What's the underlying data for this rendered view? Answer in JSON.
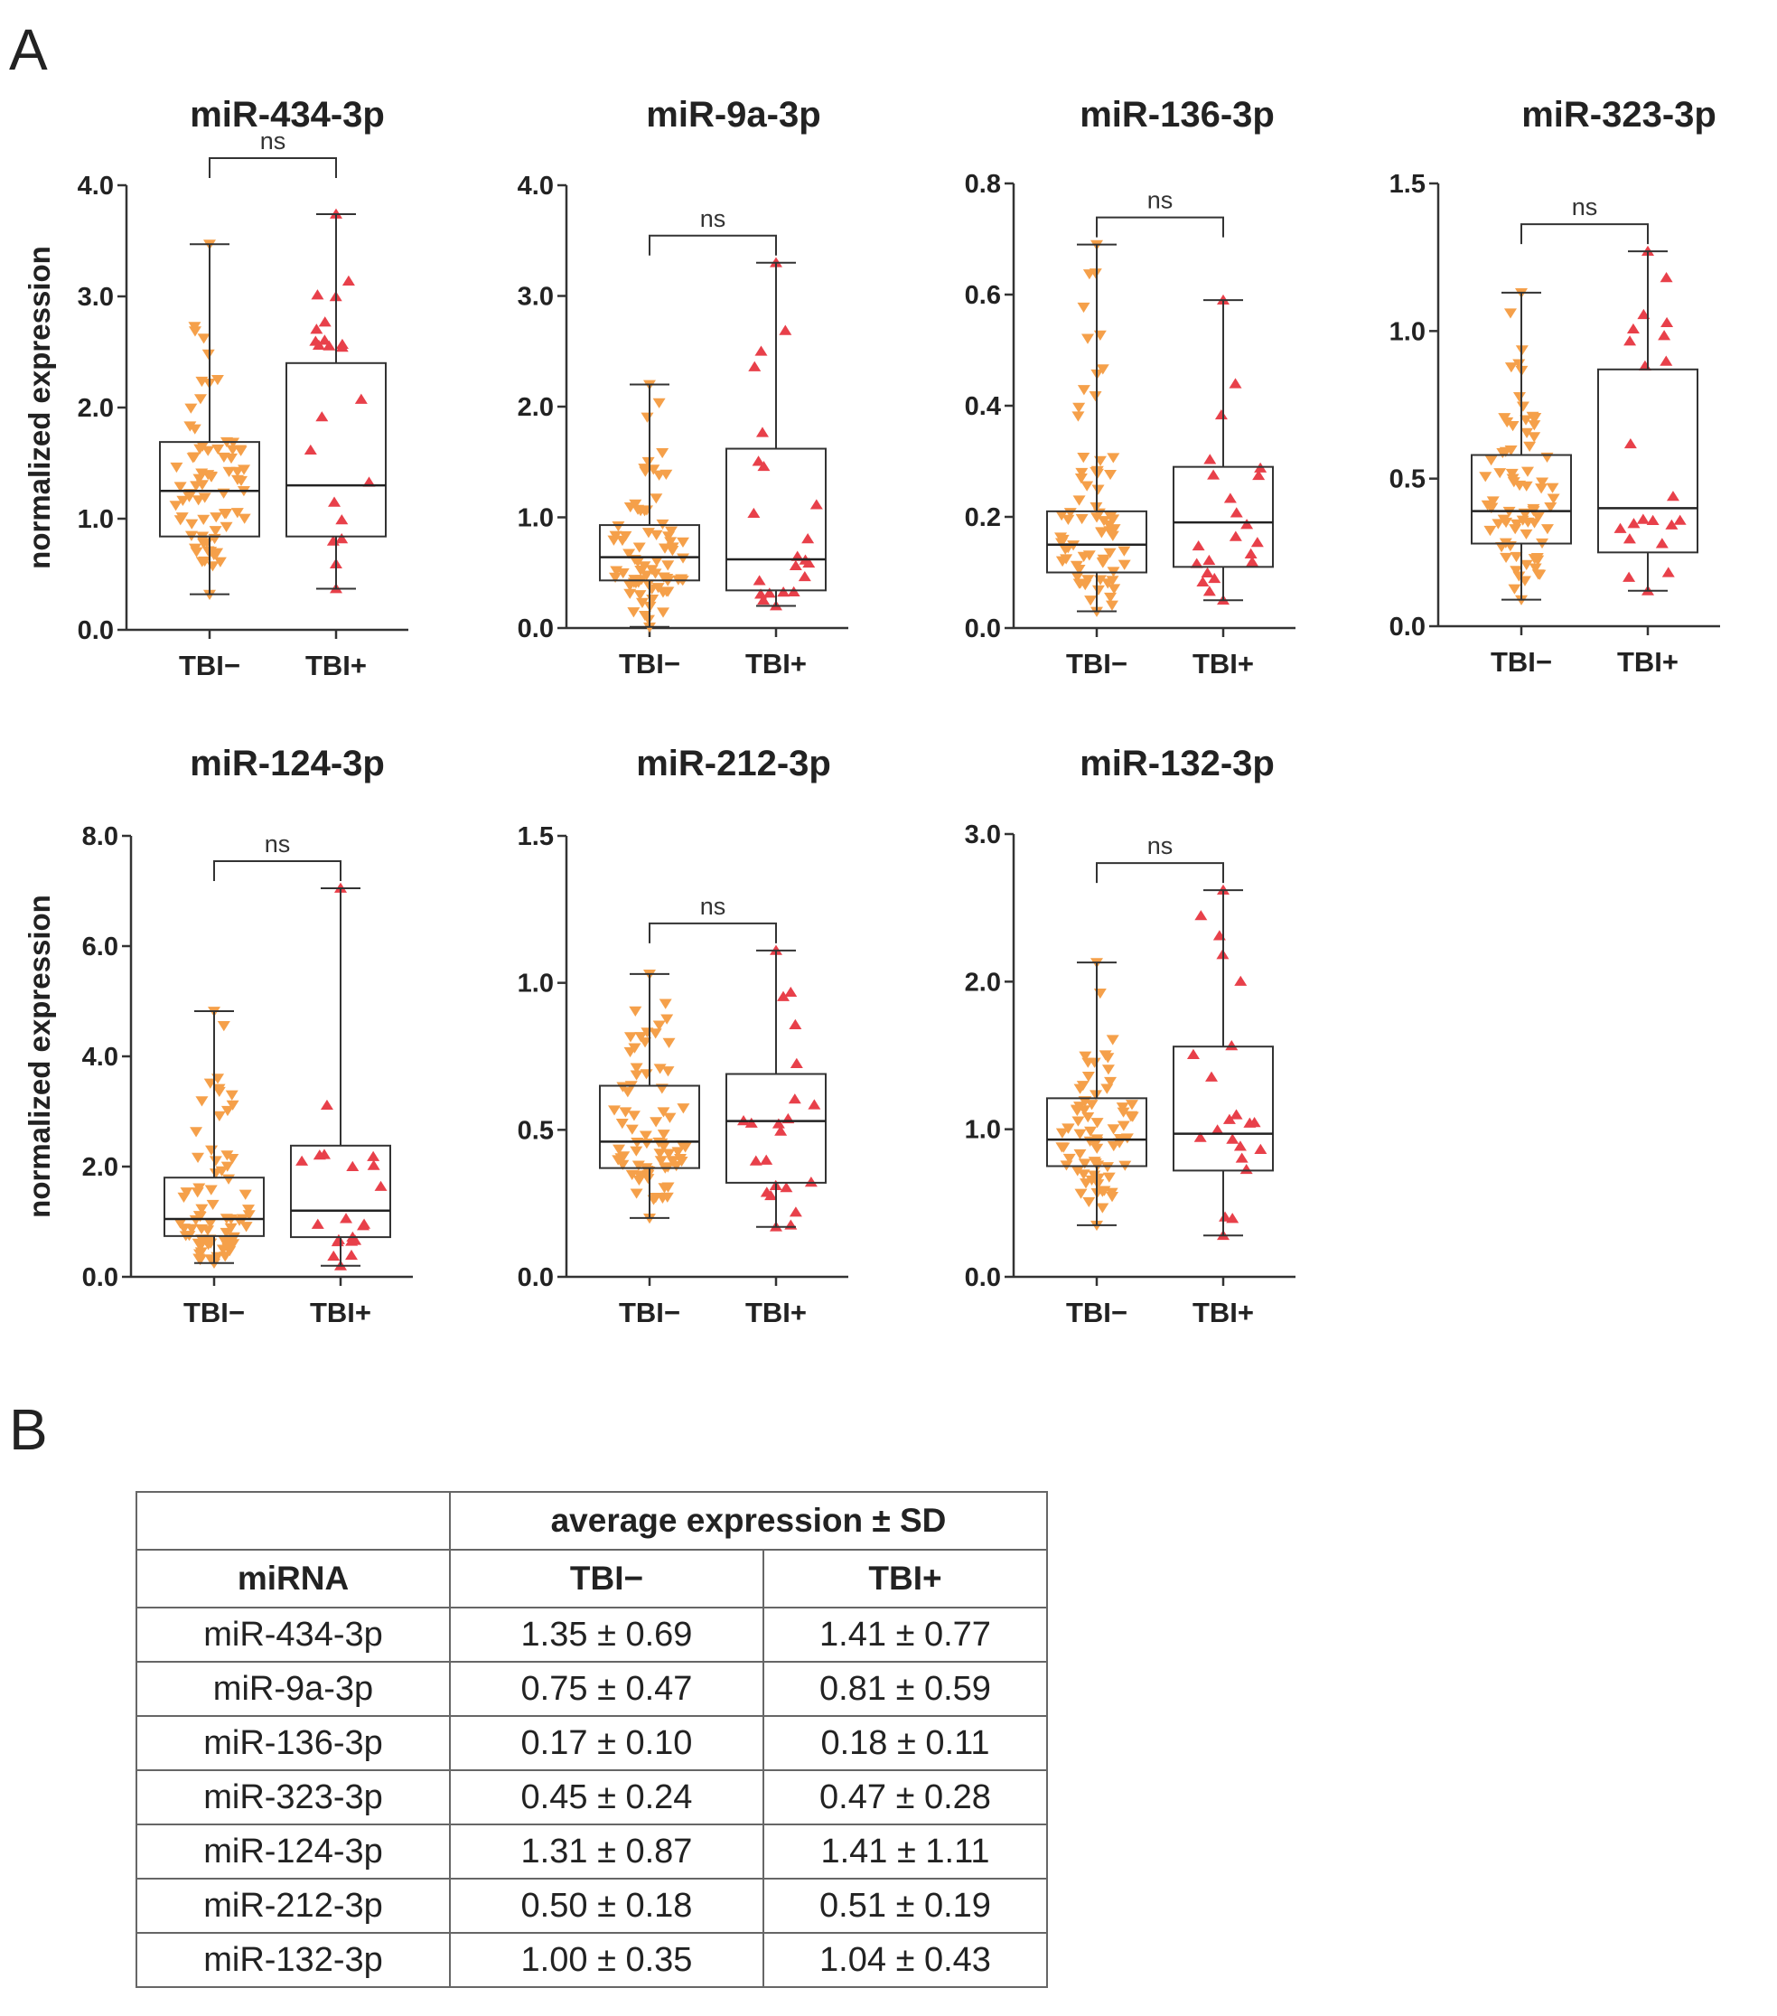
{
  "panel_a_letter": "A",
  "panel_b_letter": "B",
  "chart_data": [
    {
      "type": "box",
      "title": "miR-434-3p",
      "ylabel": "normalized expression",
      "ylim": [
        0,
        4.0
      ],
      "yticks": [
        "0.0",
        "1.0",
        "2.0",
        "3.0",
        "4.0"
      ],
      "yticks_values": [
        0,
        1,
        2,
        3,
        4
      ],
      "categories": [
        "TBI−",
        "TBI+"
      ],
      "significance": "ns",
      "boxes": [
        {
          "min": 0.32,
          "q1": 0.84,
          "median": 1.25,
          "q3": 1.69,
          "max": 3.47,
          "n": 75
        },
        {
          "min": 0.37,
          "q1": 0.84,
          "median": 1.3,
          "q3": 2.4,
          "max": 3.74,
          "n": 22
        }
      ]
    },
    {
      "type": "box",
      "title": "miR-9a-3p",
      "ylabel": "",
      "ylim": [
        0,
        4.0
      ],
      "yticks": [
        "0.0",
        "1.0",
        "2.0",
        "3.0",
        "4.0"
      ],
      "yticks_values": [
        0,
        1,
        2,
        3,
        4
      ],
      "categories": [
        "TBI−",
        "TBI+"
      ],
      "significance": "ns",
      "boxes": [
        {
          "min": 0.01,
          "q1": 0.43,
          "median": 0.64,
          "q3": 0.93,
          "max": 2.2,
          "n": 75
        },
        {
          "min": 0.2,
          "q1": 0.34,
          "median": 0.62,
          "q3": 1.62,
          "max": 3.3,
          "n": 22
        }
      ]
    },
    {
      "type": "box",
      "title": "miR-136-3p",
      "ylabel": "",
      "ylim": [
        0,
        0.8
      ],
      "yticks": [
        "0.0",
        "0.2",
        "0.4",
        "0.6",
        "0.8"
      ],
      "yticks_values": [
        0,
        0.2,
        0.4,
        0.6,
        0.8
      ],
      "categories": [
        "TBI−",
        "TBI+"
      ],
      "significance": "ns",
      "boxes": [
        {
          "min": 0.03,
          "q1": 0.1,
          "median": 0.15,
          "q3": 0.21,
          "max": 0.69,
          "n": 75
        },
        {
          "min": 0.05,
          "q1": 0.11,
          "median": 0.19,
          "q3": 0.29,
          "max": 0.59,
          "n": 22
        }
      ]
    },
    {
      "type": "box",
      "title": "miR-323-3p",
      "ylabel": "",
      "ylim": [
        0,
        1.5
      ],
      "yticks": [
        "0.0",
        "0.5",
        "1.0",
        "1.5"
      ],
      "yticks_values": [
        0,
        0.5,
        1.0,
        1.5
      ],
      "categories": [
        "TBI−",
        "TBI+"
      ],
      "significance": "ns",
      "boxes": [
        {
          "min": 0.09,
          "q1": 0.28,
          "median": 0.39,
          "q3": 0.58,
          "max": 1.13,
          "n": 75
        },
        {
          "min": 0.12,
          "q1": 0.25,
          "median": 0.4,
          "q3": 0.87,
          "max": 1.27,
          "n": 22
        }
      ]
    },
    {
      "type": "box",
      "title": "miR-124-3p",
      "ylabel": "normalized expression",
      "ylim": [
        0,
        8.0
      ],
      "yticks": [
        "0.0",
        "2.0",
        "4.0",
        "6.0",
        "8.0"
      ],
      "yticks_values": [
        0,
        2,
        4,
        6,
        8
      ],
      "categories": [
        "TBI−",
        "TBI+"
      ],
      "significance": "ns",
      "boxes": [
        {
          "min": 0.25,
          "q1": 0.74,
          "median": 1.05,
          "q3": 1.8,
          "max": 4.82,
          "n": 75
        },
        {
          "min": 0.2,
          "q1": 0.72,
          "median": 1.2,
          "q3": 2.38,
          "max": 7.05,
          "n": 22
        }
      ]
    },
    {
      "type": "box",
      "title": "miR-212-3p",
      "ylabel": "",
      "ylim": [
        0,
        1.5
      ],
      "yticks": [
        "0.0",
        "0.5",
        "1.0",
        "1.5"
      ],
      "yticks_values": [
        0,
        0.5,
        1.0,
        1.5
      ],
      "categories": [
        "TBI−",
        "TBI+"
      ],
      "significance": "ns",
      "boxes": [
        {
          "min": 0.2,
          "q1": 0.37,
          "median": 0.46,
          "q3": 0.65,
          "max": 1.03,
          "n": 75
        },
        {
          "min": 0.17,
          "q1": 0.32,
          "median": 0.53,
          "q3": 0.69,
          "max": 1.11,
          "n": 22
        }
      ]
    },
    {
      "type": "box",
      "title": "miR-132-3p",
      "ylabel": "",
      "ylim": [
        0,
        3.0
      ],
      "yticks": [
        "0.0",
        "1.0",
        "2.0",
        "3.0"
      ],
      "yticks_values": [
        0,
        1,
        2,
        3
      ],
      "categories": [
        "TBI−",
        "TBI+"
      ],
      "significance": "ns",
      "boxes": [
        {
          "min": 0.35,
          "q1": 0.75,
          "median": 0.93,
          "q3": 1.21,
          "max": 2.13,
          "n": 75
        },
        {
          "min": 0.28,
          "q1": 0.72,
          "median": 0.97,
          "q3": 1.56,
          "max": 2.62,
          "n": 22
        }
      ]
    }
  ],
  "colors": {
    "tbi_neg": "#f5a04a",
    "tbi_pos": "#e8404a",
    "axis": "#333333"
  },
  "table": {
    "group_header": "average expression ± SD",
    "columns": [
      "miRNA",
      "TBI−",
      "TBI+"
    ],
    "rows": [
      [
        "miR-434-3p",
        "1.35 ± 0.69",
        "1.41 ± 0.77"
      ],
      [
        "miR-9a-3p",
        "0.75 ± 0.47",
        "0.81 ± 0.59"
      ],
      [
        "miR-136-3p",
        "0.17 ± 0.10",
        "0.18 ± 0.11"
      ],
      [
        "miR-323-3p",
        "0.45 ± 0.24",
        "0.47 ± 0.28"
      ],
      [
        "miR-124-3p",
        "1.31 ± 0.87",
        "1.41 ± 1.11"
      ],
      [
        "miR-212-3p",
        "0.50 ± 0.18",
        "0.51 ± 0.19"
      ],
      [
        "miR-132-3p",
        "1.00 ± 0.35",
        "1.04 ± 0.43"
      ]
    ]
  }
}
